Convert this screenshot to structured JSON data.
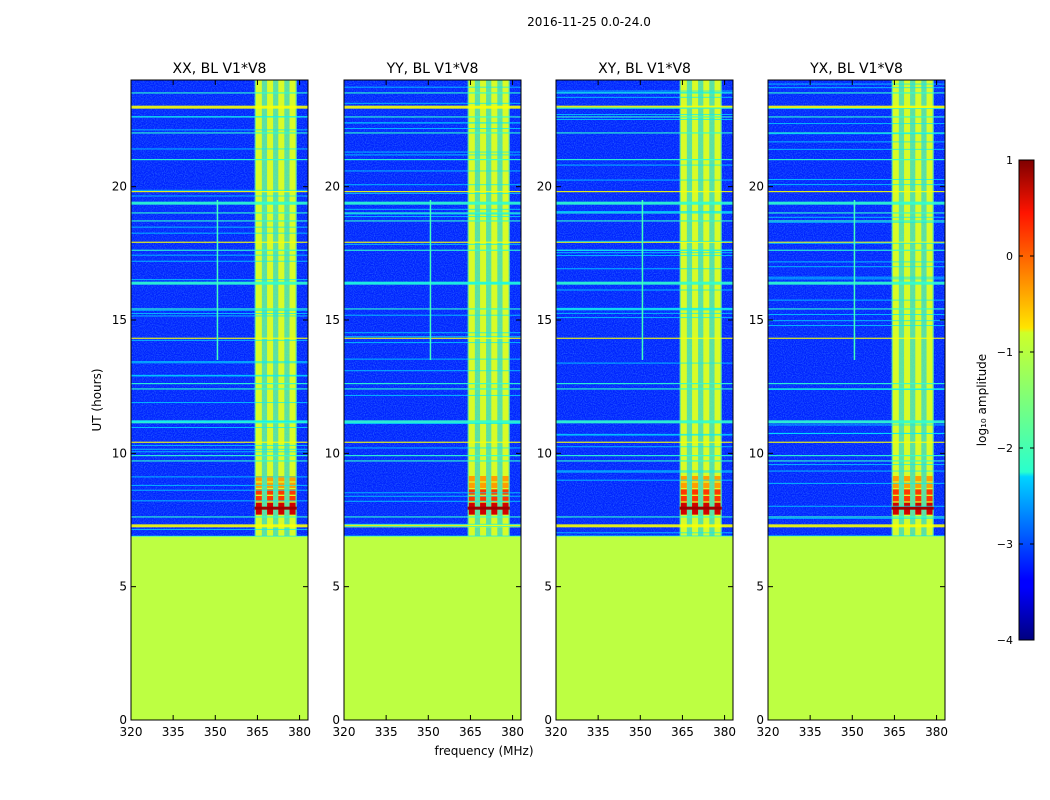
{
  "figure": {
    "suptitle": "2016-11-25 0.0-24.0",
    "xlabel": "frequency (MHz)",
    "ylabel": "UT (hours)",
    "colorbar_label": "log₁₀ amplitude"
  },
  "chart_data": {
    "type": "heatmap",
    "title": "2016-11-25 0.0-24.0",
    "xlabel": "frequency (MHz)",
    "ylabel": "UT (hours)",
    "xlim": [
      320,
      383
    ],
    "ylim": [
      0,
      24
    ],
    "xticks": [
      320,
      335,
      350,
      365,
      380
    ],
    "yticks": [
      0,
      5,
      10,
      15,
      20
    ],
    "colorscale": "jet",
    "colorbar": {
      "label": "log10 amplitude",
      "range": [
        -4,
        1
      ],
      "ticks": [
        1,
        0,
        -1,
        -2,
        -3,
        -4
      ]
    },
    "panels": [
      {
        "title": "XX, BL V1*V8",
        "no_data_below_hours": 6.9,
        "no_data_value": -1.2,
        "strong_band_mhz": [
          364,
          379
        ],
        "peak_hours": [
          7.7,
          9.2
        ]
      },
      {
        "title": "YY, BL V1*V8",
        "no_data_below_hours": 6.9,
        "no_data_value": -1.2,
        "strong_band_mhz": [
          364,
          379
        ],
        "peak_hours": [
          7.7,
          9.2
        ]
      },
      {
        "title": "XY, BL V1*V8",
        "no_data_below_hours": 6.9,
        "no_data_value": -1.2,
        "strong_band_mhz": [
          364,
          379
        ],
        "peak_hours": [
          7.7,
          9.2
        ]
      },
      {
        "title": "YX, BL V1*V8",
        "no_data_below_hours": 6.9,
        "no_data_value": -1.2,
        "strong_band_mhz": [
          364,
          379
        ],
        "peak_hours": [
          7.7,
          9.2
        ]
      }
    ]
  }
}
